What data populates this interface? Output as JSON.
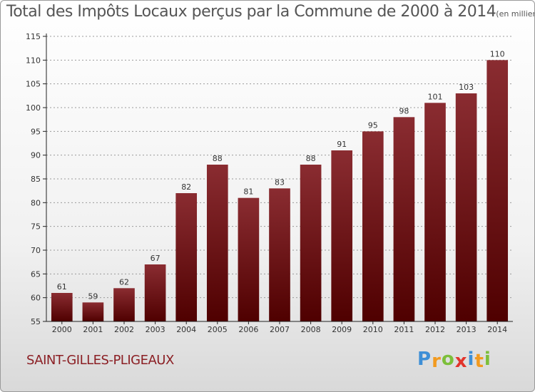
{
  "title": "Total des Impôts Locaux perçus par la Commune de 2000 à 2014",
  "title_unit": "(en milliers d'€)",
  "commune": "SAINT-GILLES-PLIGEAUX",
  "logo": {
    "letters": [
      "P",
      "r",
      "o",
      "x",
      "i",
      "t",
      "i"
    ],
    "colors": [
      "#3e8fd6",
      "#f29a1f",
      "#7cbf3a",
      "#e2342c",
      "#3e8fd6",
      "#f29a1f",
      "#7cbf3a"
    ]
  },
  "colors": {
    "bar_top": "#8a2c31",
    "bar_bottom": "#4f0000",
    "axis": "#222222",
    "grid": "#9a9a9a",
    "label": "#333333",
    "commune": "#8b1f24"
  },
  "chart_data": {
    "type": "bar",
    "title": "Total des Impôts Locaux perçus par la Commune de 2000 à 2014",
    "xlabel": "",
    "ylabel": "",
    "categories": [
      "2000",
      "2001",
      "2002",
      "2003",
      "2004",
      "2005",
      "2006",
      "2007",
      "2008",
      "2009",
      "2010",
      "2011",
      "2012",
      "2013",
      "2014"
    ],
    "values": [
      61,
      59,
      62,
      67,
      82,
      88,
      81,
      83,
      88,
      91,
      95,
      98,
      101,
      103,
      110
    ],
    "ylim": [
      55,
      115
    ],
    "yticks": [
      55,
      60,
      65,
      70,
      75,
      80,
      85,
      90,
      95,
      100,
      105,
      110,
      115
    ],
    "grid": true,
    "legend": "none"
  }
}
